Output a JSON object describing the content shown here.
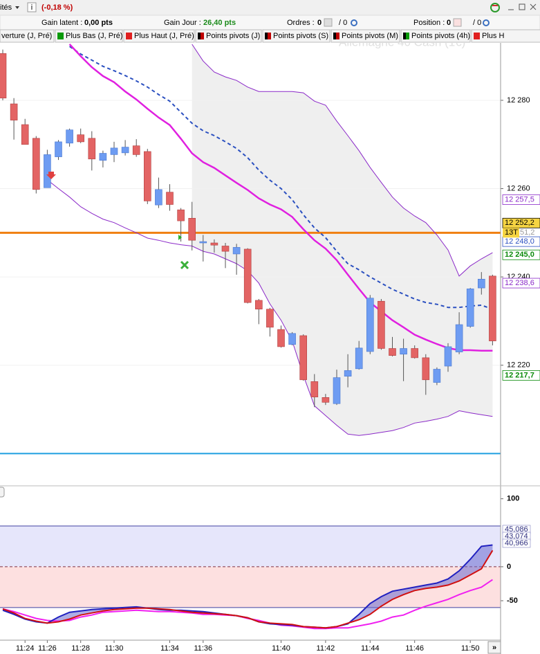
{
  "toolbar": {
    "menu": "ités",
    "info_icon": "i",
    "change": "(-0,18 %)"
  },
  "status": {
    "latent_label": "Gain latent :",
    "latent_value": "0,00 pts",
    "day_label": "Gain Jour :",
    "day_value": "26,40 pts",
    "orders_label": "Ordres :",
    "orders_value": "0",
    "orders_total": "/ 0",
    "position_label": "Position :",
    "position_value": "0",
    "position_total": "/ 0"
  },
  "tabs": [
    {
      "label": "verture (J, Pré)",
      "color": null
    },
    {
      "label": "Plus Bas (J, Pré)",
      "color": "#0a9a0a"
    },
    {
      "label": "Plus Haut (J, Pré)",
      "color": "#e02020"
    },
    {
      "label": "Points pivots (J)",
      "color": "#c00000"
    },
    {
      "label": "Points pivots (S)",
      "color": "#c00000"
    },
    {
      "label": "Points pivots (M)",
      "color": "#c00000"
    },
    {
      "label": "Points pivots (4h)",
      "color": "#0a9a0a"
    },
    {
      "label": "Plus H",
      "color": "#e02020"
    }
  ],
  "scroll_button": "»",
  "chart_data": [
    {
      "type": "candlestick",
      "watermark": "Allemagne 40 Cash (1€)",
      "up_color": "#6e9cf2",
      "down_color": "#e36464",
      "open": [
        12290.6,
        12279.2,
        12274.5,
        12271.4,
        12260.2,
        12267.2,
        12270.3,
        12272.2,
        12271.4,
        12266.4,
        12267.7,
        12268.1,
        12269.7,
        12268.4,
        12256.3,
        12259.2,
        12255.2,
        12253.3,
        12247.7,
        12247.7,
        12247.0,
        12245.2,
        12246.3,
        12234.7,
        12232.7,
        12228.1,
        12224.7,
        12226.7,
        12216.3,
        12212.7,
        12211.3,
        12217.5,
        12219.2,
        12223.1,
        12234.5,
        12223.8,
        12222.5,
        12223.8,
        12221.7,
        12216.1,
        12219.8,
        12223.0,
        12228.8,
        12237.5,
        12240.2
      ],
      "high": [
        12291.5,
        12280.5,
        12275.8,
        12271.9,
        12268.8,
        12271.0,
        12273.6,
        12273.6,
        12273.0,
        12268.6,
        12270.6,
        12271.0,
        12271.2,
        12269.0,
        12262.5,
        12261.0,
        12255.6,
        12257.0,
        12249.5,
        12248.5,
        12247.7,
        12247.5,
        12246.5,
        12235.0,
        12233.0,
        12229.0,
        12227.5,
        12227.0,
        12218.0,
        12213.5,
        12219.0,
        12222.5,
        12225.5,
        12235.9,
        12235.0,
        12226.4,
        12226.0,
        12224.5,
        12222.5,
        12219.5,
        12225.0,
        12232.0,
        12237.5,
        12241.1,
        12240.5
      ],
      "low": [
        12280.0,
        12271.1,
        12270.0,
        12258.9,
        12260.2,
        12266.5,
        12269.5,
        12270.3,
        12264.1,
        12264.8,
        12266.0,
        12267.5,
        12267.2,
        12256.5,
        12255.6,
        12255.0,
        12248.0,
        12246.0,
        12243.5,
        12245.5,
        12242.0,
        12240.5,
        12234.0,
        12229.3,
        12226.5,
        12224.0,
        12224.5,
        12216.5,
        12210.5,
        12211.0,
        12211.0,
        12215.0,
        12219.0,
        12222.5,
        12223.5,
        12222.0,
        12216.4,
        12221.5,
        12213.3,
        12215.5,
        12218.5,
        12222.5,
        12228.5,
        12236.0,
        12224.5
      ],
      "close": [
        12280.5,
        12275.5,
        12270.0,
        12259.8,
        12267.7,
        12270.6,
        12273.3,
        12270.6,
        12266.7,
        12268.0,
        12269.2,
        12269.4,
        12267.7,
        12257.2,
        12259.8,
        12256.4,
        12252.7,
        12248.3,
        12248.0,
        12247.2,
        12245.8,
        12246.7,
        12234.2,
        12232.7,
        12228.6,
        12224.2,
        12227.2,
        12216.7,
        12212.8,
        12211.6,
        12217.2,
        12218.8,
        12223.9,
        12235.2,
        12223.8,
        12222.2,
        12223.8,
        12221.7,
        12216.7,
        12219.1,
        12224.2,
        12229.2,
        12237.3,
        12239.5,
        12225.5
      ],
      "envelope_fill": "#efefef",
      "series": [
        {
          "color": "#8a28c8",
          "width": 1,
          "values": [
            null,
            null,
            null,
            null,
            null,
            null,
            null,
            null,
            null,
            null,
            null,
            null,
            null,
            null,
            null,
            null,
            null,
            12292.7,
            12288.9,
            12286.4,
            12285.3,
            12284.5,
            12283.0,
            12282.0,
            12282.0,
            12282.0,
            12282.0,
            12281.7,
            12279.8,
            12278.9,
            12275.3,
            12272.0,
            12268.6,
            12264.8,
            12261.4,
            12258.1,
            12255.6,
            12253.8,
            12252.3,
            12249.5,
            12246.1,
            12240.2,
            12242.5,
            12244.1,
            12245.5
          ]
        },
        {
          "color": "#8a28c8",
          "width": 1,
          "values": [
            null,
            null,
            null,
            null,
            12262.0,
            12260.0,
            12258.1,
            12255.9,
            12254.4,
            12253.1,
            12252.3,
            12251.1,
            12250.0,
            12248.8,
            12248.3,
            12247.7,
            12247.3,
            12247.0,
            12245.8,
            12245.2,
            12244.1,
            12243.0,
            12241.4,
            12238.6,
            12233.9,
            12230.2,
            12225.5,
            12217.7,
            12210.8,
            12208.6,
            12206.4,
            12204.4,
            12204.1,
            12204.4,
            12204.8,
            12205.2,
            12205.9,
            12206.9,
            12207.3,
            12207.8,
            12208.4,
            12209.7,
            12209.2,
            12208.8,
            12208.4
          ]
        },
        {
          "color": "#2a4fc0",
          "width": 2,
          "dashed": true,
          "values": [
            null,
            null,
            null,
            null,
            null,
            null,
            12292.2,
            12290.5,
            12289.1,
            12287.7,
            12286.7,
            12285.6,
            12284.4,
            12283.0,
            12281.3,
            12279.8,
            12277.3,
            12274.8,
            12273.1,
            12272.0,
            12270.6,
            12269.1,
            12267.0,
            12264.2,
            12261.9,
            12260.0,
            12257.5,
            12254.1,
            12251.1,
            12248.9,
            12245.8,
            12243.0,
            12241.6,
            12240.0,
            12238.6,
            12237.2,
            12236.1,
            12235.0,
            12234.2,
            12233.8,
            12233.1,
            12233.1,
            12233.4,
            12233.6,
            12232.7
          ]
        },
        {
          "color": "#e020e0",
          "width": 2.5,
          "values": [
            null,
            null,
            null,
            null,
            null,
            null,
            12292.7,
            12290.0,
            12287.5,
            12285.5,
            12284.1,
            12282.0,
            12280.2,
            12278.1,
            12276.1,
            12274.4,
            12271.3,
            12268.0,
            12266.0,
            12264.7,
            12263.0,
            12261.3,
            12259.7,
            12257.8,
            12256.4,
            12255.3,
            12253.6,
            12250.8,
            12248.3,
            12246.4,
            12243.8,
            12240.5,
            12237.3,
            12234.2,
            12232.2,
            12230.2,
            12228.6,
            12226.9,
            12225.8,
            12224.8,
            12223.9,
            12223.4,
            12223.4,
            12223.3,
            12223.3
          ]
        }
      ],
      "levels": [
        {
          "value": 12250.0,
          "color": "#f07f10"
        },
        {
          "value": 12200.0,
          "color": "#1e9fe0"
        }
      ],
      "price_tags": [
        {
          "value": 12257.5,
          "label": "12 257,5",
          "color": "#8a28c8",
          "background": "#ffffff"
        },
        {
          "value": 12252.2,
          "label": "12 252,2",
          "color": "#000000",
          "background": "#f5d442"
        },
        {
          "value": 12248.0,
          "label": "12 248,0",
          "color": "#2a4fc0",
          "background": "#ffffff"
        },
        {
          "value": 12245.0,
          "label": "12 245,0",
          "color": "#0a8a0a",
          "background": "#ffffff"
        },
        {
          "value": 12238.6,
          "label": "12 238,6",
          "color": "#8a28c8",
          "background": "#ffffff"
        },
        {
          "value": 12217.7,
          "label": "12 217,7",
          "color": "#0a8a0a",
          "background": "#ffffff"
        }
      ],
      "tick_counter": "13T",
      "hidden_tag": "51,2",
      "ylim": [
        12193,
        12293
      ],
      "yticks": [
        {
          "value": 12220,
          "label": "12 220"
        },
        {
          "value": 12240,
          "label": "12 240"
        },
        {
          "value": 12260,
          "label": "12 260"
        },
        {
          "value": 12280,
          "label": "12 280"
        }
      ]
    },
    {
      "type": "line",
      "categories": [
        null,
        null,
        "11:24",
        null,
        "11:26",
        null,
        null,
        "11:28",
        null,
        null,
        "11:30",
        null,
        null,
        null,
        null,
        "11:34",
        null,
        null,
        "11:36",
        null,
        null,
        null,
        null,
        null,
        null,
        "11:40",
        null,
        null,
        null,
        "11:42",
        null,
        null,
        null,
        "11:44",
        null,
        null,
        null,
        "11:46",
        null,
        null,
        null,
        null,
        "11:50",
        null,
        null
      ],
      "zones": [
        {
          "from": 0,
          "to": 60,
          "color": "#e6e6fb"
        },
        {
          "from": -60,
          "to": 0,
          "color": "#fde0e0"
        }
      ],
      "series": [
        {
          "color": "#f020f0",
          "values": [
            -62,
            -66,
            -71,
            -76,
            -79,
            -80,
            -79,
            -74,
            -71,
            -67,
            -66,
            -65,
            -64,
            -65,
            -66,
            -66,
            -67,
            -68,
            -70,
            -70,
            -71,
            -72,
            -76,
            -79,
            -83,
            -86,
            -87,
            -89,
            -91,
            -91,
            -90,
            -90,
            -87,
            -84,
            -80,
            -74,
            -71,
            -64,
            -58,
            -53,
            -48,
            -41,
            -35,
            -30,
            -19
          ]
        },
        {
          "color": "#2020c0",
          "values": [
            -64,
            -70,
            -77,
            -81,
            -83,
            -74,
            -67,
            -65,
            -63,
            -62,
            -61,
            -60,
            -59,
            -61,
            -63,
            -64,
            -64,
            -65,
            -66,
            -68,
            -70,
            -72,
            -75,
            -81,
            -84,
            -85,
            -86,
            -88,
            -89,
            -90,
            -88,
            -84,
            -70,
            -54,
            -44,
            -36,
            -33,
            -30,
            -27,
            -24,
            -18,
            -6,
            11,
            30,
            32
          ]
        },
        {
          "color": "#d01010",
          "values": [
            -62,
            -68,
            -76,
            -80,
            -83,
            -81,
            -77,
            -71,
            -68,
            -65,
            -63,
            -62,
            -61,
            -61,
            -62,
            -63,
            -65,
            -67,
            -68,
            -69,
            -70,
            -72,
            -75,
            -81,
            -83,
            -84,
            -85,
            -88,
            -89,
            -90,
            -88,
            -83,
            -78,
            -70,
            -58,
            -48,
            -41,
            -35,
            -32,
            -30,
            -27,
            -21,
            -12,
            -3,
            24
          ]
        }
      ],
      "tags": [
        "45,086",
        "43,074",
        "40,966"
      ],
      "ylim": [
        -108,
        118
      ],
      "yticks": [
        -50,
        0,
        100
      ]
    }
  ]
}
